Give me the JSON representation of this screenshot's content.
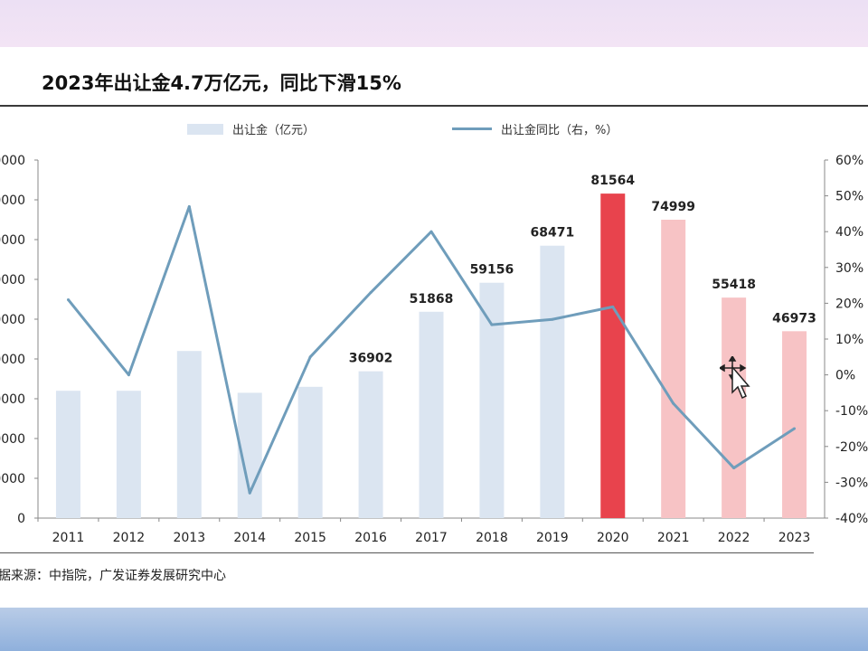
{
  "title": "2023年出让金4.7万亿元，同比下滑15%",
  "source": "据来源：中指院，广发证券发展研究中心",
  "chart_data": {
    "type": "bar",
    "categories": [
      "2011",
      "2012",
      "2013",
      "2014",
      "2015",
      "2016",
      "2017",
      "2018",
      "2019",
      "2020",
      "2021",
      "2022",
      "2023"
    ],
    "series": [
      {
        "name": "出让金（亿元）",
        "type": "bar",
        "axis": "left",
        "values": [
          32000,
          32000,
          42000,
          31500,
          33000,
          36902,
          51868,
          59156,
          68471,
          81564,
          74999,
          55418,
          46973
        ],
        "data_labels": [
          null,
          null,
          null,
          null,
          null,
          "36902",
          "51868",
          "59156",
          "68471",
          "81564",
          "74999",
          "55418",
          "46973"
        ],
        "colors": [
          "#dbe5f1",
          "#dbe5f1",
          "#dbe5f1",
          "#dbe5f1",
          "#dbe5f1",
          "#dbe5f1",
          "#dbe5f1",
          "#dbe5f1",
          "#dbe5f1",
          "#e8434d",
          "#f7c3c5",
          "#f7c3c5",
          "#f7c3c5"
        ]
      },
      {
        "name": "出让金同比（右，%）",
        "type": "line",
        "axis": "right",
        "color": "#6f9dbb",
        "values": [
          21,
          0,
          47,
          -33,
          5,
          23,
          40,
          14,
          15.5,
          19,
          -8,
          -26,
          -15
        ]
      }
    ],
    "y_left": {
      "ylim": [
        0,
        90000
      ],
      "ticks": [
        "0",
        "0000",
        "0000",
        "0000",
        "0000",
        "0000",
        "0000",
        "0000",
        "0000",
        "0000"
      ]
    },
    "y_right": {
      "ylim": [
        -40,
        60
      ],
      "ticks": [
        "-40%",
        "-30%",
        "-20%",
        "-10%",
        "0%",
        "10%",
        "20%",
        "30%",
        "40%",
        "50%",
        "60%"
      ]
    },
    "legend": "top-center",
    "grid": false
  }
}
